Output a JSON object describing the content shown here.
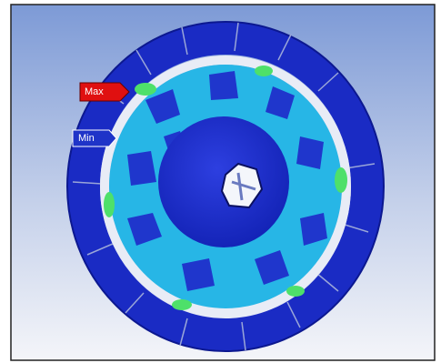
{
  "labels": {
    "max": "Max",
    "min": "Min"
  }
}
